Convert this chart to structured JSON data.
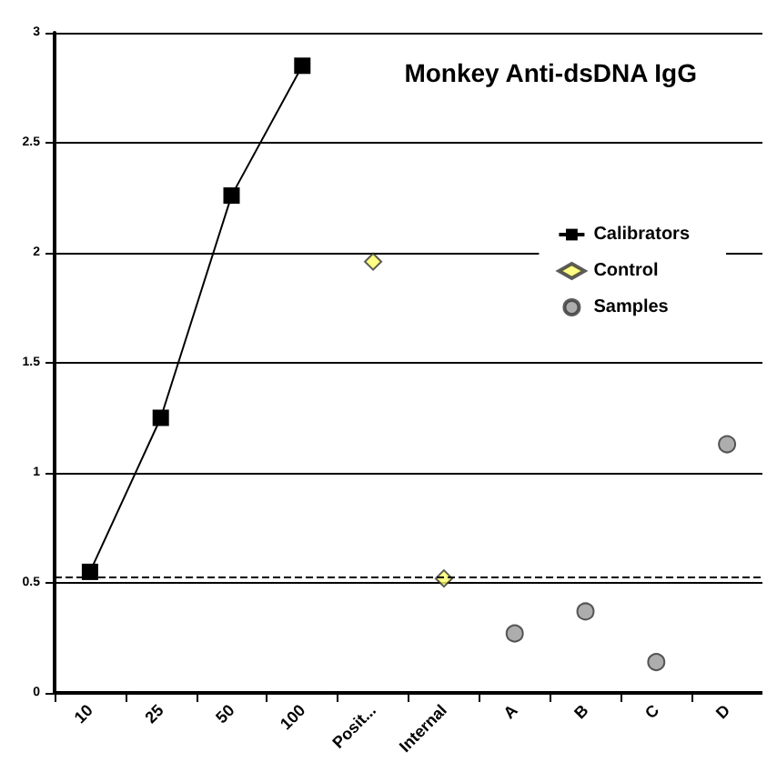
{
  "chart_data": {
    "type": "line",
    "title": "Monkey Anti-dsDNA IgG",
    "categories": [
      "10",
      "25",
      "50",
      "100",
      "Posit...",
      "Internal",
      "A",
      "B",
      "C",
      "D"
    ],
    "series": [
      {
        "name": "Calibrators",
        "type": "line",
        "color": "#000000",
        "marker": "square",
        "values": [
          0.55,
          1.25,
          2.26,
          2.85,
          null,
          null,
          null,
          null,
          null,
          null
        ]
      },
      {
        "name": "Control",
        "type": "scatter",
        "color": "#ffff66",
        "marker": "diamond",
        "values": [
          null,
          null,
          null,
          null,
          1.96,
          0.52,
          null,
          null,
          null,
          null
        ]
      },
      {
        "name": "Samples",
        "type": "scatter",
        "color": "#999999",
        "marker": "circle",
        "values": [
          null,
          null,
          null,
          null,
          null,
          null,
          0.27,
          0.37,
          0.14,
          1.13
        ]
      }
    ],
    "ylim": [
      0,
      3
    ],
    "yticks": [
      0,
      0.5,
      1,
      1.5,
      2,
      2.5,
      3
    ],
    "grid": "y",
    "legend": "right",
    "ref_lines": [
      {
        "axis": "y",
        "value": 0.53,
        "line_style": "dashed",
        "color": "#000000"
      }
    ]
  }
}
